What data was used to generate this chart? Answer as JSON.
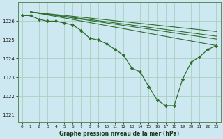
{
  "title": "Graphe pression niveau de la mer (hPa)",
  "bg_color": "#cde8f0",
  "grid_color": "#a8cfc0",
  "line_color": "#2d6e2d",
  "marker_color": "#2d6e2d",
  "main_x": [
    0,
    1,
    2,
    3,
    4,
    5,
    6,
    7,
    8,
    9,
    10,
    11,
    12,
    13,
    14,
    15,
    16,
    17,
    18,
    19,
    20,
    21,
    22,
    23
  ],
  "main_y": [
    1026.3,
    1026.3,
    1026.1,
    1026.0,
    1026.0,
    1025.9,
    1025.8,
    1025.5,
    1025.1,
    1025.0,
    1024.8,
    1024.5,
    1024.2,
    1023.5,
    1023.3,
    1022.5,
    1021.8,
    1021.5,
    1021.5,
    1022.9,
    1023.8,
    1024.1,
    1024.5,
    1024.7
  ],
  "straight_lines": [
    {
      "x0": 1,
      "y0": 1026.5,
      "x1": 23,
      "y1": 1024.7
    },
    {
      "x0": 1,
      "y0": 1026.5,
      "x1": 23,
      "y1": 1025.05
    },
    {
      "x0": 1,
      "y0": 1026.5,
      "x1": 23,
      "y1": 1025.2
    },
    {
      "x0": 1,
      "y0": 1026.5,
      "x1": 23,
      "y1": 1025.45
    }
  ],
  "xlim": [
    -0.5,
    23.5
  ],
  "ylim": [
    1020.6,
    1027.0
  ],
  "yticks": [
    1021,
    1022,
    1023,
    1024,
    1025,
    1026
  ],
  "xticks": [
    0,
    1,
    2,
    3,
    4,
    5,
    6,
    7,
    8,
    9,
    10,
    11,
    12,
    13,
    14,
    15,
    16,
    17,
    18,
    19,
    20,
    21,
    22,
    23
  ]
}
